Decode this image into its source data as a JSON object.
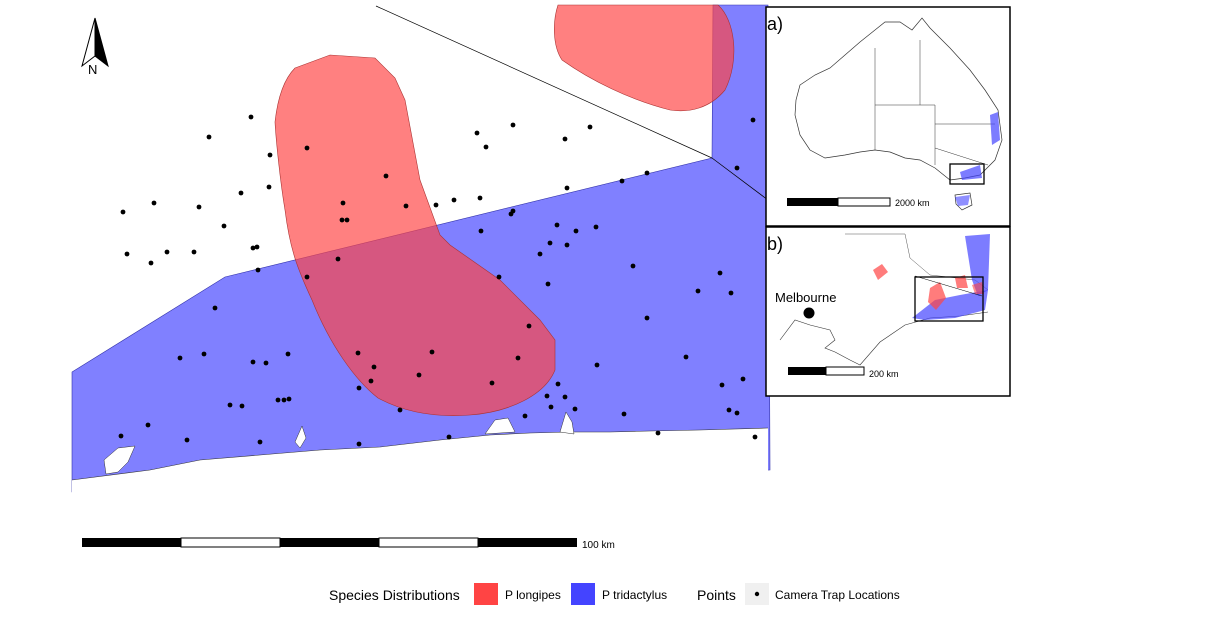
{
  "north_arrow": {
    "label": "N"
  },
  "main_map": {
    "scale_bar_label": "100 km",
    "colors": {
      "p_longipes": "#ff4444",
      "p_tridactylus": "#4444ff",
      "land": "#ffffff",
      "points": "#000000"
    },
    "camera_points_count_note": ""
  },
  "inset_a": {
    "label": "a)",
    "scale_bar_label": "2000 km"
  },
  "inset_b": {
    "label": "b)",
    "city": "Melbourne",
    "scale_bar_label": "200 km"
  },
  "legend": {
    "distributions_title": "Species Distributions",
    "items": [
      {
        "label": "P longipes",
        "color": "#ff4444"
      },
      {
        "label": "P tridactylus",
        "color": "#4444ff"
      }
    ],
    "points_title": "Points",
    "points_label": "Camera Trap Locations"
  }
}
